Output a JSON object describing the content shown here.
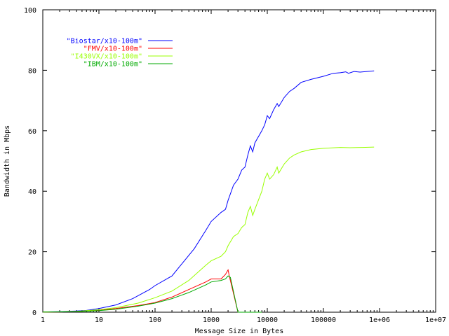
{
  "chart_data": {
    "type": "line",
    "title": "",
    "xlabel": "Message Size in Bytes",
    "ylabel": "Bandwidth in Mbps",
    "xscale": "log",
    "xlim": [
      1,
      10000000
    ],
    "ylim": [
      0,
      100
    ],
    "grid": false,
    "legend_position": "top-left",
    "x_ticks": [
      1,
      10,
      100,
      1000,
      10000,
      100000,
      1000000,
      10000000
    ],
    "x_tick_labels": [
      "1",
      "10",
      "100",
      "1000",
      "10000",
      "100000",
      "1e+06",
      "1e+07"
    ],
    "y_ticks": [
      0,
      20,
      40,
      60,
      80,
      100
    ],
    "y_tick_labels": [
      "0",
      "20",
      "40",
      "60",
      "80",
      "100"
    ],
    "series": [
      {
        "name": "\"Biostar/x10-100m\"",
        "color": "#0000ff",
        "points": [
          [
            1,
            0.1
          ],
          [
            2,
            0.2
          ],
          [
            4,
            0.4
          ],
          [
            6,
            0.6
          ],
          [
            10,
            1.2
          ],
          [
            20,
            2.4
          ],
          [
            40,
            4.5
          ],
          [
            80,
            7.5
          ],
          [
            100,
            8.8
          ],
          [
            200,
            12
          ],
          [
            300,
            16
          ],
          [
            500,
            21
          ],
          [
            800,
            27
          ],
          [
            1000,
            30
          ],
          [
            1500,
            33
          ],
          [
            1800,
            34
          ],
          [
            2000,
            37
          ],
          [
            2500,
            42
          ],
          [
            3000,
            44
          ],
          [
            3500,
            47
          ],
          [
            4000,
            48
          ],
          [
            4500,
            52
          ],
          [
            5000,
            55
          ],
          [
            5500,
            53
          ],
          [
            6000,
            56
          ],
          [
            8000,
            60
          ],
          [
            9000,
            62
          ],
          [
            10000,
            65
          ],
          [
            11000,
            64
          ],
          [
            13000,
            67
          ],
          [
            15000,
            69
          ],
          [
            16000,
            68
          ],
          [
            20000,
            71
          ],
          [
            25000,
            73
          ],
          [
            30000,
            74
          ],
          [
            40000,
            76
          ],
          [
            60000,
            77
          ],
          [
            100000,
            78
          ],
          [
            150000,
            79
          ],
          [
            200000,
            79.2
          ],
          [
            250000,
            79.5
          ],
          [
            280000,
            79
          ],
          [
            350000,
            79.6
          ],
          [
            450000,
            79.4
          ],
          [
            800000,
            79.8
          ]
        ]
      },
      {
        "name": "\"FMV/x10-100m\"",
        "color": "#ff0000",
        "points": [
          [
            1,
            0.05
          ],
          [
            2,
            0.1
          ],
          [
            4,
            0.2
          ],
          [
            10,
            0.6
          ],
          [
            20,
            1.2
          ],
          [
            50,
            2.2
          ],
          [
            100,
            3.2
          ],
          [
            200,
            5
          ],
          [
            400,
            7.5
          ],
          [
            800,
            10
          ],
          [
            1000,
            11
          ],
          [
            1500,
            11
          ],
          [
            1800,
            12.5
          ],
          [
            2000,
            14
          ],
          [
            2100,
            12
          ],
          [
            3000,
            0
          ],
          [
            8000,
            0
          ]
        ]
      },
      {
        "name": "\"I430VX/x10-100m\"",
        "color": "#99ff00",
        "points": [
          [
            1,
            0.05
          ],
          [
            2,
            0.15
          ],
          [
            4,
            0.3
          ],
          [
            10,
            0.8
          ],
          [
            20,
            1.5
          ],
          [
            50,
            3
          ],
          [
            100,
            4.8
          ],
          [
            200,
            7
          ],
          [
            400,
            10.5
          ],
          [
            800,
            15.5
          ],
          [
            1000,
            17
          ],
          [
            1500,
            18.5
          ],
          [
            1800,
            20
          ],
          [
            2000,
            22
          ],
          [
            2500,
            25
          ],
          [
            3000,
            26
          ],
          [
            3500,
            28
          ],
          [
            4000,
            29
          ],
          [
            4500,
            33
          ],
          [
            5000,
            35
          ],
          [
            5500,
            32
          ],
          [
            6000,
            34
          ],
          [
            8000,
            40
          ],
          [
            9000,
            44
          ],
          [
            10000,
            46
          ],
          [
            11000,
            44
          ],
          [
            13000,
            45.5
          ],
          [
            15000,
            48
          ],
          [
            16000,
            46
          ],
          [
            20000,
            49
          ],
          [
            25000,
            51
          ],
          [
            30000,
            52
          ],
          [
            40000,
            53
          ],
          [
            60000,
            53.8
          ],
          [
            100000,
            54.2
          ],
          [
            200000,
            54.5
          ],
          [
            300000,
            54.4
          ],
          [
            500000,
            54.5
          ],
          [
            800000,
            54.6
          ]
        ]
      },
      {
        "name": "\"IBM/x10-100m\"",
        "color": "#00aa00",
        "points": [
          [
            1,
            0.05
          ],
          [
            2,
            0.1
          ],
          [
            4,
            0.2
          ],
          [
            10,
            0.5
          ],
          [
            20,
            1
          ],
          [
            50,
            2
          ],
          [
            100,
            3
          ],
          [
            200,
            4.5
          ],
          [
            400,
            6.5
          ],
          [
            800,
            9
          ],
          [
            1000,
            10
          ],
          [
            1500,
            10.5
          ],
          [
            1800,
            11
          ],
          [
            2000,
            12
          ],
          [
            2200,
            11.5
          ],
          [
            3000,
            0
          ],
          [
            8000,
            0
          ]
        ]
      }
    ]
  }
}
